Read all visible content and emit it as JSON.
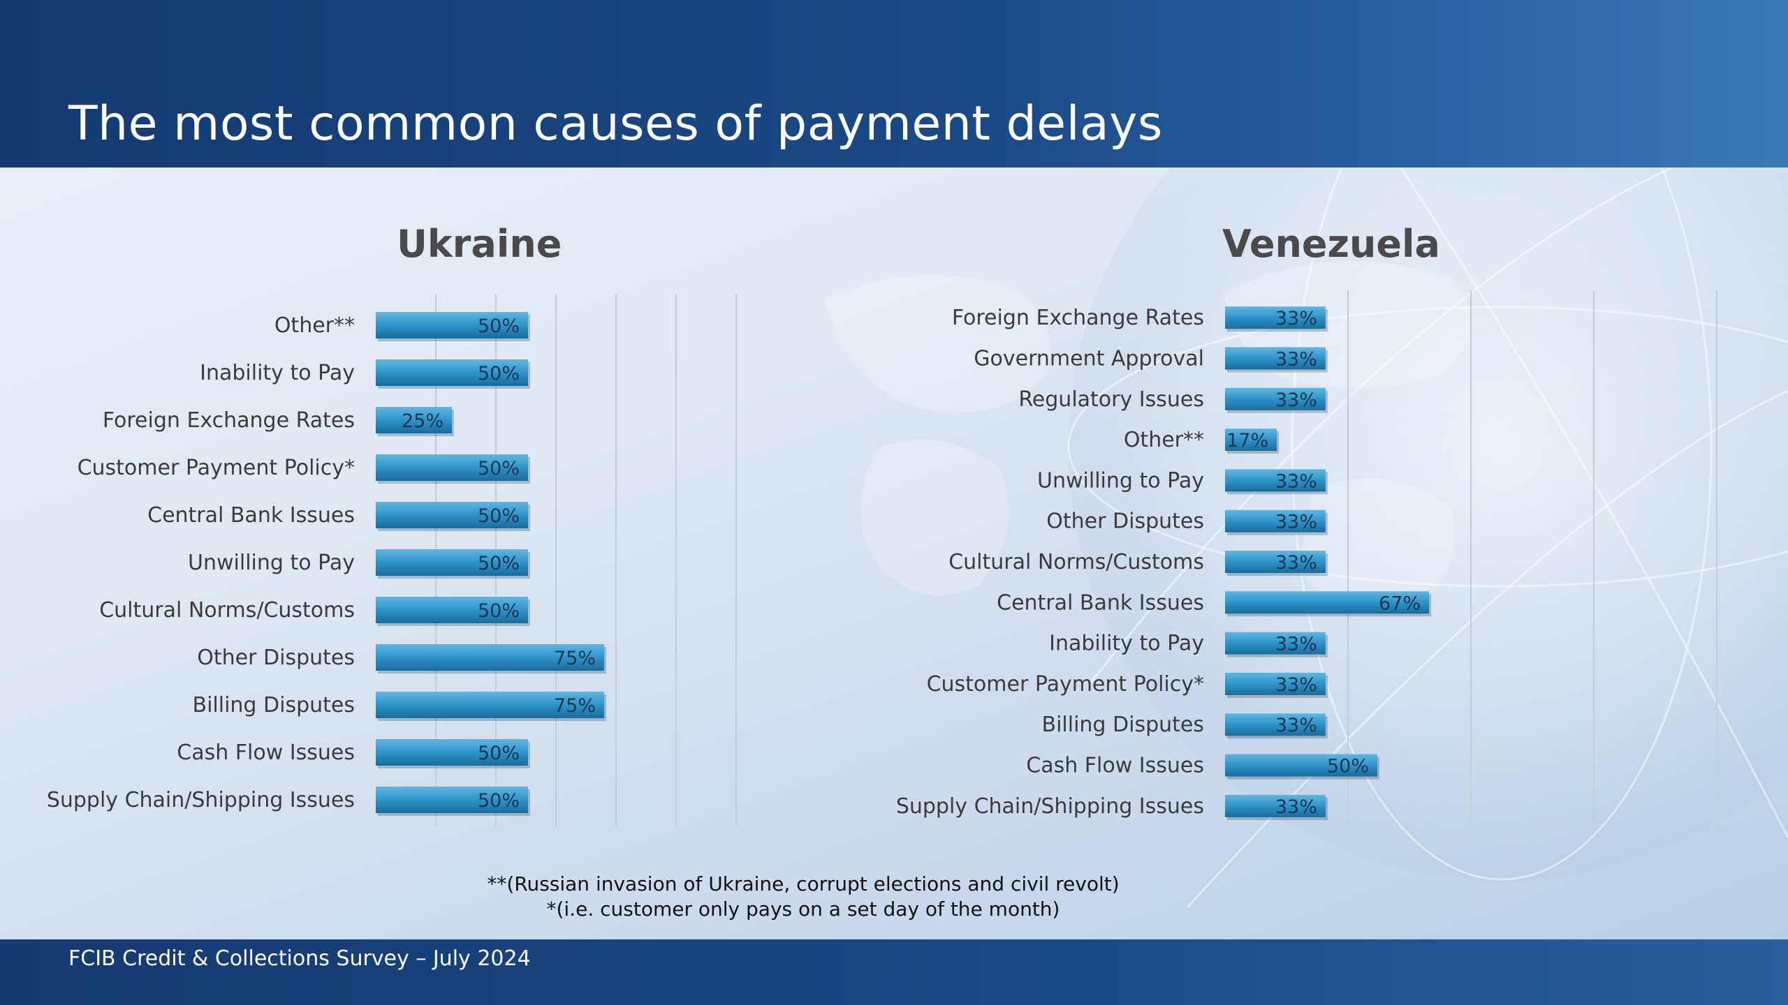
{
  "title": "The most common causes of payment delays",
  "footer": "FCIB Credit & Collections Survey – July 2024",
  "footnotes": [
    "**(Russian invasion of Ukraine, corrupt elections and civil revolt)",
    "*(i.e. customer only pays on a set day of the month)"
  ],
  "colors": {
    "bar": "#2b8fc6",
    "bar_top": "#5fb7e3",
    "bar_shadow": "#1b6b99",
    "header": "#163f78"
  },
  "chart_data": [
    {
      "type": "bar",
      "orientation": "horizontal",
      "title": "Ukraine",
      "categories": [
        "Other**",
        "Inability to Pay",
        "Foreign Exchange Rates",
        "Customer Payment Policy*",
        "Central Bank Issues",
        "Unwilling to Pay",
        "Cultural Norms/Customs",
        "Other Disputes",
        "Billing Disputes",
        "Cash Flow Issues",
        "Supply Chain/Shipping Issues"
      ],
      "values": [
        50,
        50,
        25,
        50,
        50,
        50,
        50,
        75,
        75,
        50,
        50
      ],
      "value_labels": [
        "50%",
        "50%",
        "25%",
        "50%",
        "50%",
        "50%",
        "50%",
        "75%",
        "75%",
        "50%",
        "50%"
      ],
      "unit": "%",
      "xlim": [
        0,
        120
      ],
      "grid": true
    },
    {
      "type": "bar",
      "orientation": "horizontal",
      "title": "Venezuela",
      "categories": [
        "Foreign Exchange Rates",
        "Government Approval",
        "Regulatory Issues",
        "Other**",
        "Unwilling to Pay",
        "Other Disputes",
        "Cultural Norms/Customs",
        "Central Bank Issues",
        "Inability to Pay",
        "Customer Payment Policy*",
        "Billing Disputes",
        "Cash Flow Issues",
        "Supply Chain/Shipping Issues"
      ],
      "values": [
        33,
        33,
        33,
        17,
        33,
        33,
        33,
        67,
        33,
        33,
        33,
        50,
        33
      ],
      "value_labels": [
        "33%",
        "33%",
        "33%",
        "17%",
        "33%",
        "33%",
        "33%",
        "67%",
        "33%",
        "33%",
        "33%",
        "50%",
        "33%"
      ],
      "unit": "%",
      "xlim": [
        0,
        120
      ],
      "grid": true
    }
  ]
}
